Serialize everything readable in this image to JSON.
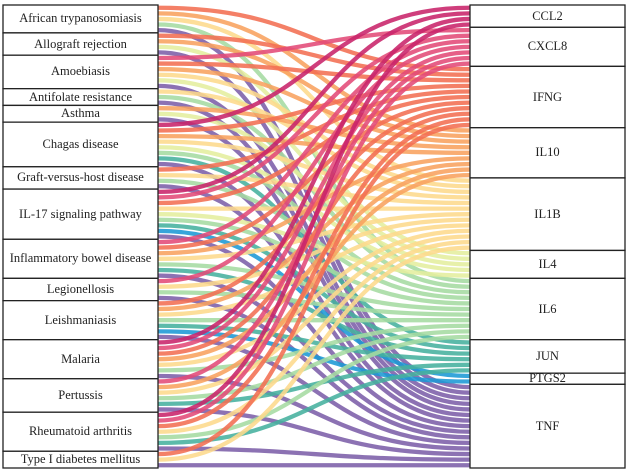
{
  "sankey": {
    "sources": [
      "African trypanosomiasis",
      "Allograft rejection",
      "Amoebiasis",
      "Antifolate resistance",
      "Asthma",
      "Chagas disease",
      "Graft-versus-host disease",
      "IL-17 signaling pathway",
      "Inflammatory bowel disease",
      "Legionellosis",
      "Leishmaniasis",
      "Malaria",
      "Pertussis",
      "Rheumatoid arthritis",
      "Type I diabetes mellitus"
    ],
    "targets": [
      "CCL2",
      "CXCL8",
      "IFNG",
      "IL10",
      "IL1B",
      "IL4",
      "IL6",
      "JUN",
      "PTGS2",
      "TNF"
    ],
    "target_colors": {
      "CCL2": "#c8236a",
      "CXCL8": "#e24a78",
      "IFNG": "#f26e52",
      "IL10": "#f8a25e",
      "IL1B": "#fdd98c",
      "IL4": "#e4ee9e",
      "IL6": "#a5dba2",
      "JUN": "#45b09e",
      "PTGS2": "#1b98d5",
      "TNF": "#7c5ea8"
    },
    "links": {
      "African trypanosomiasis": [
        "IFNG",
        "IL10",
        "IL1B",
        "IL6",
        "TNF"
      ],
      "Allograft rejection": [
        "IFNG",
        "IL10",
        "IL4",
        "TNF"
      ],
      "Amoebiasis": [
        "CXCL8",
        "IFNG",
        "IL10",
        "IL1B",
        "IL4",
        "TNF"
      ],
      "Antifolate resistance": [
        "IL1B",
        "IL6",
        "TNF"
      ],
      "Asthma": [
        "IL10",
        "IL4",
        "TNF"
      ],
      "Chagas disease": [
        "CCL2",
        "IFNG",
        "IL10",
        "IL1B",
        "IL4",
        "IL6",
        "JUN",
        "TNF"
      ],
      "Graft-versus-host disease": [
        "IFNG",
        "IL1B",
        "IL6",
        "TNF"
      ],
      "IL-17 signaling pathway": [
        "CCL2",
        "CXCL8",
        "IFNG",
        "IL1B",
        "IL4",
        "IL6",
        "JUN",
        "PTGS2",
        "TNF"
      ],
      "Inflammatory bowel disease": [
        "CXCL8",
        "IFNG",
        "IL10",
        "IL1B",
        "IL6",
        "JUN",
        "TNF"
      ],
      "Legionellosis": [
        "CXCL8",
        "IL1B",
        "IL6",
        "TNF"
      ],
      "Leishmaniasis": [
        "IFNG",
        "IL10",
        "IL1B",
        "IL6",
        "JUN",
        "PTGS2",
        "TNF"
      ],
      "Malaria": [
        "CCL2",
        "CXCL8",
        "IFNG",
        "IL10",
        "IL1B",
        "IL6",
        "TNF"
      ],
      "Pertussis": [
        "CXCL8",
        "IL10",
        "IL1B",
        "IL6",
        "JUN",
        "TNF"
      ],
      "Rheumatoid arthritis": [
        "CCL2",
        "CXCL8",
        "IFNG",
        "IL1B",
        "IL6",
        "JUN",
        "TNF"
      ],
      "Type I diabetes mellitus": [
        "IFNG",
        "IL1B",
        "TNF"
      ]
    }
  }
}
